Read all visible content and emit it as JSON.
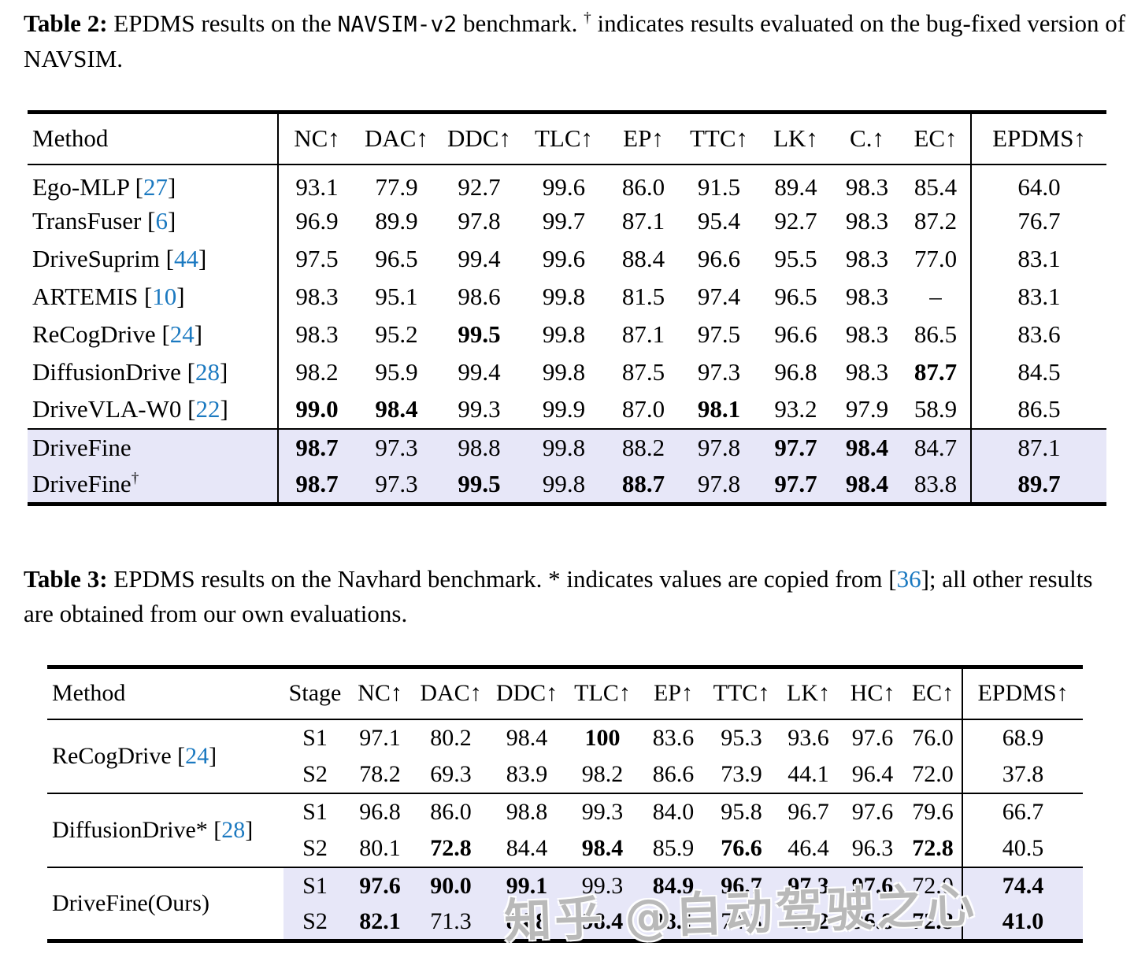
{
  "colors": {
    "text": "#000000",
    "background": "#ffffff",
    "citation_link": "#1b79c0",
    "row_highlight": "#e7e7f8",
    "watermark": "#9e9e9e"
  },
  "watermark": {
    "text": "知乎 @自动驾驶之心"
  },
  "table2": {
    "caption": {
      "label": "Table 2:",
      "t1": " EPDMS results on the ",
      "mono": "NAVSIM-v2",
      "t2": " benchmark. ",
      "sup": "†",
      "t3": " indicates results evaluated on the bug-fixed version of NAVSIM."
    },
    "headers": [
      "Method",
      "NC↑",
      "DAC↑",
      "DDC↑",
      "TLC↑",
      "EP↑",
      "TTC↑",
      "LK↑",
      "C.↑",
      "EC↑",
      "EPDMS↑"
    ],
    "rows": [
      {
        "method": "Ego-MLP",
        "ref": "27",
        "highlight": false,
        "cells": [
          "93.1",
          "77.9",
          "92.7",
          "99.6",
          "86.0",
          "91.5",
          "89.4",
          "98.3",
          "85.4",
          "64.0"
        ]
      },
      {
        "method": "TransFuser",
        "ref": "6",
        "highlight": false,
        "cells": [
          "96.9",
          "89.9",
          "97.8",
          "99.7",
          "87.1",
          "95.4",
          "92.7",
          "98.3",
          "87.2",
          "76.7"
        ]
      },
      {
        "method": "DriveSuprim",
        "ref": "44",
        "highlight": false,
        "cells": [
          "97.5",
          "96.5",
          "99.4",
          "99.6",
          "88.4",
          "96.6",
          "95.5",
          "98.3",
          "77.0",
          "83.1"
        ]
      },
      {
        "method": "ARTEMIS",
        "ref": "10",
        "highlight": false,
        "cells": [
          "98.3",
          "95.1",
          "98.6",
          "99.8",
          "81.5",
          "97.4",
          "96.5",
          "98.3",
          "–",
          "83.1"
        ]
      },
      {
        "method": "ReCogDrive",
        "ref": "24",
        "highlight": false,
        "cells": [
          "98.3",
          "95.2",
          {
            "v": "99.5",
            "b": true
          },
          "99.8",
          "87.1",
          "97.5",
          "96.6",
          "98.3",
          "86.5",
          "83.6"
        ]
      },
      {
        "method": "DiffusionDrive",
        "ref": "28",
        "highlight": false,
        "cells": [
          "98.2",
          "95.9",
          "99.4",
          "99.8",
          "87.5",
          "97.3",
          "96.8",
          "98.3",
          {
            "v": "87.7",
            "b": true
          },
          "84.5"
        ]
      },
      {
        "method": "DriveVLA-W0",
        "ref": "22",
        "highlight": false,
        "cells": [
          {
            "v": "99.0",
            "b": true
          },
          {
            "v": "98.4",
            "b": true
          },
          "99.3",
          "99.9",
          "87.0",
          {
            "v": "98.1",
            "b": true
          },
          "93.2",
          "97.9",
          "58.9",
          "86.5"
        ]
      },
      {
        "method": "DriveFine",
        "highlight": true,
        "cells": [
          {
            "v": "98.7",
            "b": true
          },
          "97.3",
          "98.8",
          "99.8",
          "88.2",
          "97.8",
          {
            "v": "97.7",
            "b": true
          },
          {
            "v": "98.4",
            "b": true
          },
          "84.7",
          "87.1"
        ]
      },
      {
        "method": "DriveFine",
        "sup": "†",
        "highlight": true,
        "cells": [
          {
            "v": "98.7",
            "b": true
          },
          "97.3",
          {
            "v": "99.5",
            "b": true
          },
          "99.8",
          {
            "v": "88.7",
            "b": true
          },
          "97.8",
          {
            "v": "97.7",
            "b": true
          },
          {
            "v": "98.4",
            "b": true
          },
          "83.8",
          {
            "v": "89.7",
            "b": true
          }
        ]
      }
    ]
  },
  "table3": {
    "caption": {
      "label": "Table 3:",
      "t1": " EPDMS results on the Navhard benchmark. * indicates values are copied from [",
      "link": "36",
      "t2": "]; all other results are obtained from our own evaluations."
    },
    "headers": [
      "Method",
      "Stage",
      "NC↑",
      "DAC↑",
      "DDC↑",
      "TLC↑",
      "EP↑",
      "TTC↑",
      "LK↑",
      "HC↑",
      "EC↑",
      "EPDMS↑"
    ],
    "groups": [
      {
        "method": "ReCogDrive",
        "ref": "24",
        "highlight": false,
        "rows": [
          {
            "stage": "S1",
            "cells": [
              "97.1",
              "80.2",
              "98.4",
              {
                "v": "100",
                "b": true
              },
              "83.6",
              "95.3",
              "93.6",
              "97.6",
              "76.0",
              "68.9"
            ]
          },
          {
            "stage": "S2",
            "cells": [
              "78.2",
              "69.3",
              "83.9",
              "98.2",
              "86.6",
              "73.9",
              "44.1",
              "96.4",
              "72.0",
              "37.8"
            ]
          }
        ]
      },
      {
        "method": "DiffusionDrive*",
        "ref": "28",
        "highlight": false,
        "rows": [
          {
            "stage": "S1",
            "cells": [
              "96.8",
              "86.0",
              "98.8",
              "99.3",
              "84.0",
              "95.8",
              "96.7",
              "97.6",
              "79.6",
              "66.7"
            ]
          },
          {
            "stage": "S2",
            "cells": [
              "80.1",
              {
                "v": "72.8",
                "b": true
              },
              "84.4",
              {
                "v": "98.4",
                "b": true
              },
              "85.9",
              {
                "v": "76.6",
                "b": true
              },
              "46.4",
              "96.3",
              {
                "v": "72.8",
                "b": true
              },
              "40.5"
            ]
          }
        ]
      },
      {
        "method": "DriveFine(Ours)",
        "highlight": true,
        "rows": [
          {
            "stage": "S1",
            "cells": [
              {
                "v": "97.6",
                "b": true
              },
              {
                "v": "90.0",
                "b": true
              },
              {
                "v": "99.1",
                "b": true
              },
              "99.3",
              {
                "v": "84.9",
                "b": true
              },
              {
                "v": "96.7",
                "b": true
              },
              {
                "v": "97.3",
                "b": true
              },
              {
                "v": "97.6",
                "b": true
              },
              "72.0",
              {
                "v": "74.4",
                "b": true
              }
            ]
          },
          {
            "stage": "S2",
            "cells": [
              {
                "v": "82.1",
                "b": true
              },
              "71.3",
              {
                "v": "84.8",
                "b": true
              },
              {
                "v": "98.4",
                "b": true
              },
              {
                "v": "88.1",
                "b": true
              },
              "74.3",
              {
                "v": "47.2",
                "b": true
              },
              {
                "v": "96.8",
                "b": true
              },
              {
                "v": "72.8",
                "b": true
              },
              {
                "v": "41.0",
                "b": true
              }
            ]
          }
        ]
      }
    ]
  }
}
